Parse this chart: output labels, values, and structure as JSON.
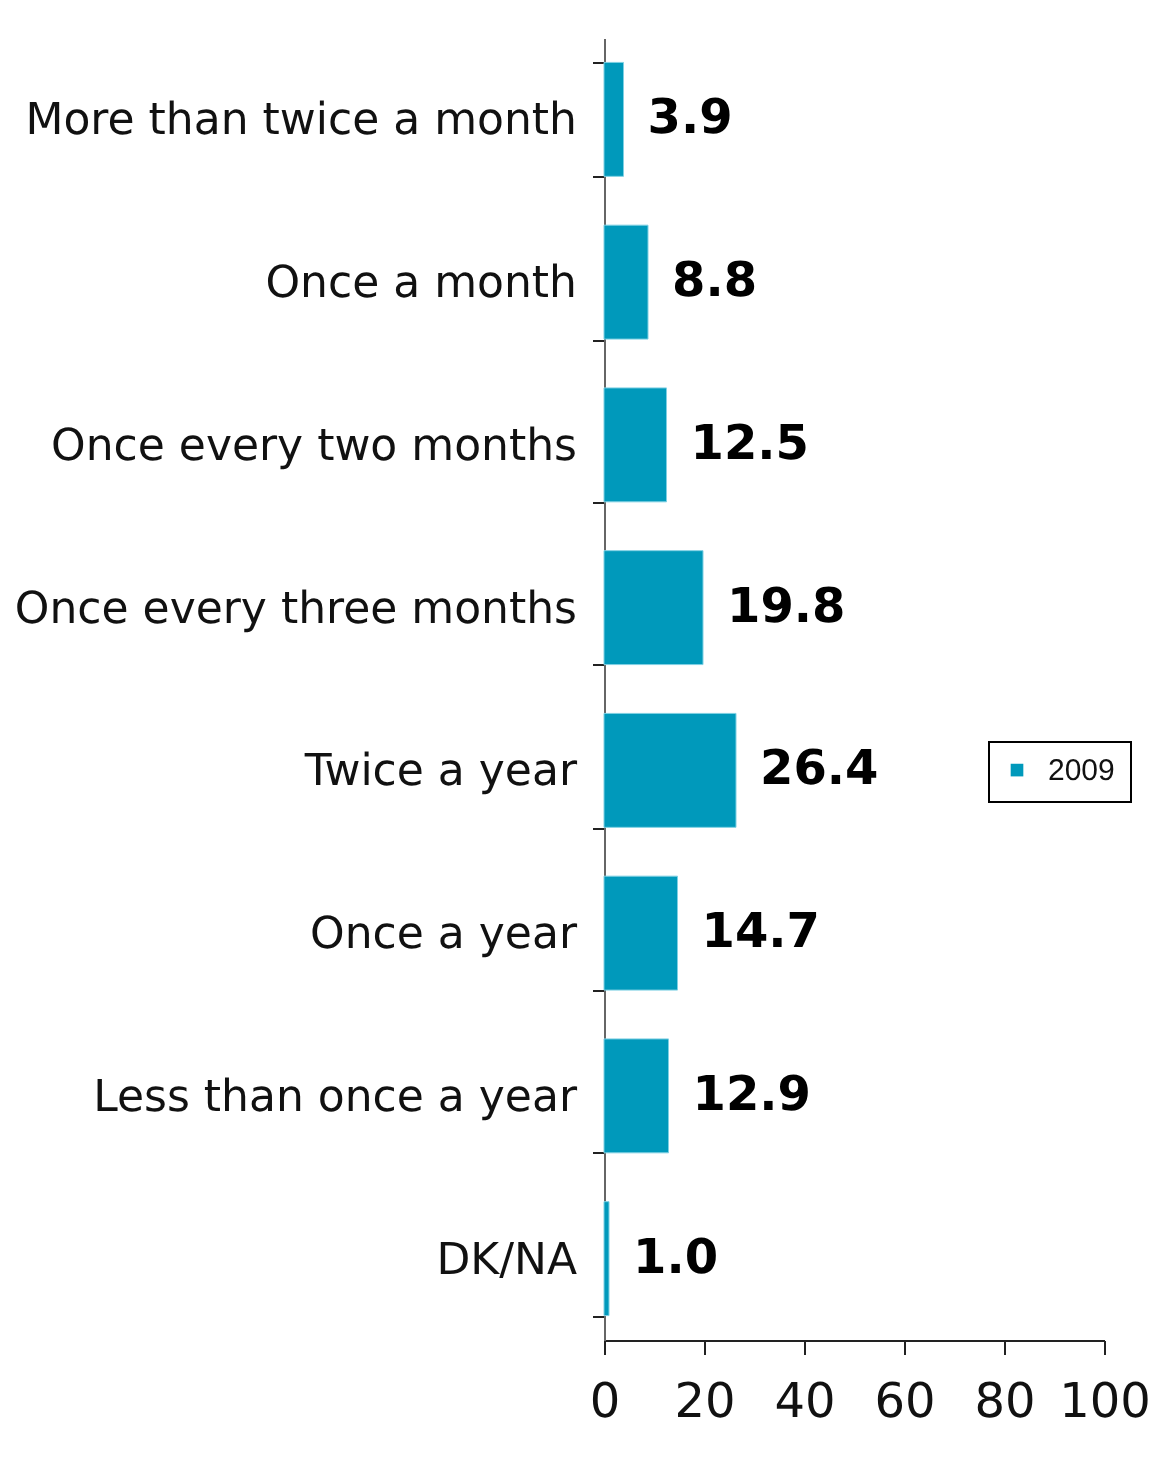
{
  "chart_data": {
    "type": "bar",
    "orientation": "horizontal",
    "categories": [
      "More than twice a month",
      "Once a month",
      "Once every two months",
      "Once every three months",
      "Twice a year",
      "Once a year",
      "Less than once a year",
      "DK/NA"
    ],
    "series": [
      {
        "name": "2009",
        "color": "#0099bb",
        "values": [
          3.9,
          8.8,
          12.5,
          19.8,
          26.4,
          14.7,
          12.9,
          1.0
        ],
        "value_labels": [
          "3.9",
          "8.8",
          "12.5",
          "19.8",
          "26.4",
          "14.7",
          "12.9",
          "1.0"
        ]
      }
    ],
    "xlim": [
      0,
      100
    ],
    "xticks": [
      0,
      20,
      40,
      60,
      80,
      100
    ],
    "legend": "right"
  }
}
